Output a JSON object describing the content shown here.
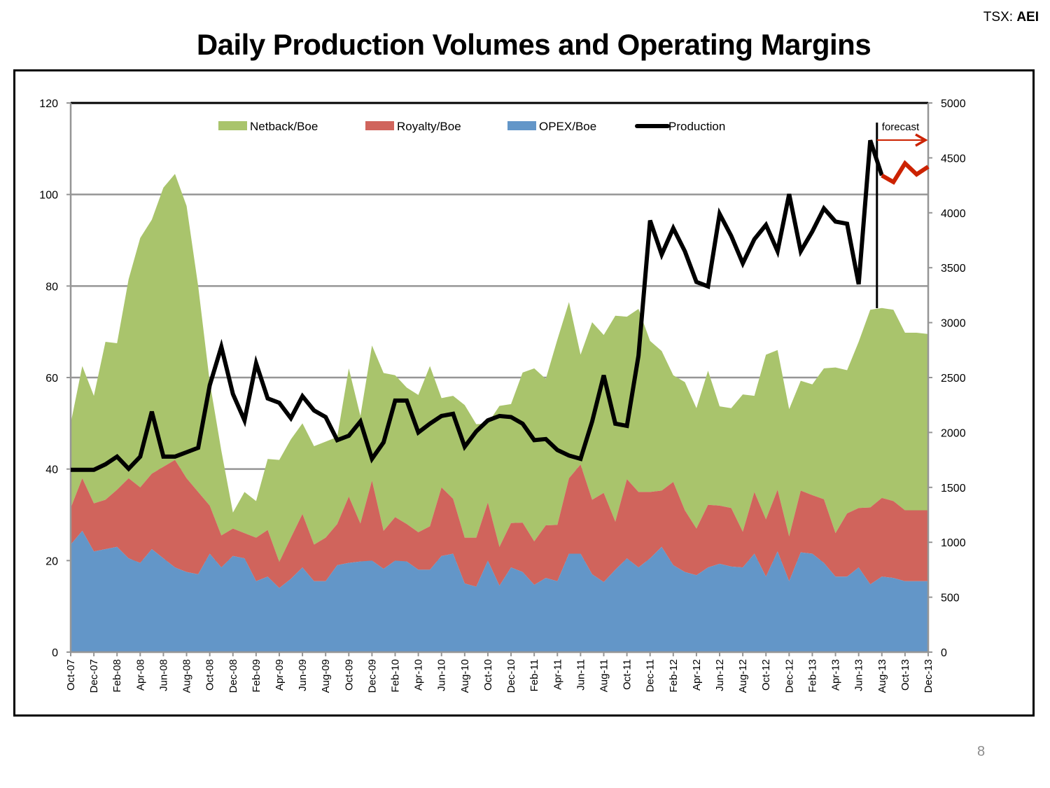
{
  "header": {
    "ticker_prefix": "TSX: ",
    "ticker_symbol": "AEI",
    "title": "Daily Production Volumes and Operating Margins"
  },
  "footer": {
    "page_number": "8"
  },
  "colors": {
    "netback": "#a9c46c",
    "royalty": "#d0645c",
    "opex": "#6396c8",
    "production": "#000000",
    "forecast": "#cc2200",
    "grid": "#969696"
  },
  "chart_data": {
    "type": "area",
    "title": "Daily Production Volumes and Operating Margins",
    "xlabel": "",
    "ylabel_left": "",
    "ylabel_right": "",
    "stacked": true,
    "ylim_left": [
      0,
      120
    ],
    "yticks_left": [
      0,
      20,
      40,
      60,
      80,
      100,
      120
    ],
    "ylim_right": [
      0,
      5000
    ],
    "yticks_right": [
      0,
      500,
      1000,
      1500,
      2000,
      2500,
      3000,
      3500,
      4000,
      4500,
      5000
    ],
    "grid": true,
    "legend_position": "top",
    "x": [
      "Oct-07",
      "Nov-07",
      "Dec-07",
      "Jan-08",
      "Feb-08",
      "Mar-08",
      "Apr-08",
      "May-08",
      "Jun-08",
      "Jul-08",
      "Aug-08",
      "Sep-08",
      "Oct-08",
      "Nov-08",
      "Dec-08",
      "Jan-09",
      "Feb-09",
      "Mar-09",
      "Apr-09",
      "May-09",
      "Jun-09",
      "Jul-09",
      "Aug-09",
      "Sep-09",
      "Oct-09",
      "Nov-09",
      "Dec-09",
      "Jan-10",
      "Feb-10",
      "Mar-10",
      "Apr-10",
      "May-10",
      "Jun-10",
      "Jul-10",
      "Aug-10",
      "Sep-10",
      "Oct-10",
      "Nov-10",
      "Dec-10",
      "Jan-11",
      "Feb-11",
      "Mar-11",
      "Apr-11",
      "May-11",
      "Jun-11",
      "Jul-11",
      "Aug-11",
      "Sep-11",
      "Oct-11",
      "Nov-11",
      "Dec-11",
      "Jan-12",
      "Feb-12",
      "Mar-12",
      "Apr-12",
      "May-12",
      "Jun-12",
      "Jul-12",
      "Aug-12",
      "Sep-12",
      "Oct-12",
      "Nov-12",
      "Dec-12",
      "Jan-13",
      "Feb-13",
      "Mar-13",
      "Apr-13",
      "May-13",
      "Jun-13",
      "Jul-13",
      "Aug-13",
      "Sep-13",
      "Oct-13",
      "Nov-13",
      "Dec-13"
    ],
    "x_tick_labels": [
      "Oct-07",
      "Dec-07",
      "Feb-08",
      "Apr-08",
      "Jun-08",
      "Aug-08",
      "Oct-08",
      "Dec-08",
      "Feb-09",
      "Apr-09",
      "Jun-09",
      "Aug-09",
      "Oct-09",
      "Dec-09",
      "Feb-10",
      "Apr-10",
      "Jun-10",
      "Aug-10",
      "Oct-10",
      "Dec-10",
      "Feb-11",
      "Apr-11",
      "Jun-11",
      "Aug-11",
      "Oct-11",
      "Dec-11",
      "Feb-12",
      "Apr-12",
      "Jun-12",
      "Aug-12",
      "Oct-12",
      "Dec-12",
      "Feb-13",
      "Apr-13",
      "Jun-13",
      "Aug-13",
      "Oct-13",
      "Dec-13"
    ],
    "series": [
      {
        "name": "OPEX/Boe",
        "axis": "left",
        "type": "area",
        "values": [
          23.5,
          26.5,
          22,
          22.5,
          23,
          20.5,
          19.5,
          22.5,
          20.5,
          18.5,
          17.5,
          17,
          21.5,
          18.5,
          21,
          20.5,
          15.5,
          16.5,
          14,
          16,
          18.5,
          15.5,
          15.5,
          19,
          19.5,
          19.8,
          20,
          18.2,
          20,
          19.8,
          18,
          18,
          21,
          21.5,
          15,
          14.3,
          20,
          14.5,
          18.5,
          17.5,
          14.7,
          16.2,
          15.5,
          21.5,
          21.5,
          17,
          15.3,
          18,
          20.5,
          18.5,
          20.5,
          23,
          19,
          17.5,
          16.8,
          18.5,
          19.3,
          18.7,
          18.5,
          21.5,
          16.5,
          22,
          15.5,
          21.8,
          21.5,
          19.5,
          16.5,
          16.5,
          18.5,
          14.8,
          16.5,
          16.2,
          15.5,
          15.5,
          15.5
        ]
      },
      {
        "name": "Royalty/Boe",
        "axis": "left",
        "type": "area",
        "values": [
          8,
          11.5,
          10.5,
          10.8,
          12.5,
          17.5,
          16.5,
          16.5,
          20,
          23.5,
          20.5,
          18,
          10.5,
          7,
          6,
          5.5,
          9.5,
          10.2,
          5.7,
          9,
          11.7,
          8,
          9.5,
          9,
          14.5,
          8.3,
          17.5,
          8.3,
          9.5,
          8.2,
          8.2,
          9.5,
          15,
          12,
          10,
          10.7,
          12.7,
          8.5,
          9.7,
          10.8,
          9.5,
          11.5,
          12.3,
          16.5,
          19.5,
          16.3,
          19.5,
          10.5,
          17.3,
          16.5,
          14.5,
          12.3,
          18.2,
          13.5,
          10.2,
          13.7,
          12.7,
          12.8,
          7.8,
          13.5,
          12.5,
          13.5,
          9.8,
          13.5,
          12.8,
          13.9,
          9.5,
          13.8,
          13,
          16.8,
          17.2,
          16.8,
          15.5,
          15.5,
          15.5
        ]
      },
      {
        "name": "Netback/Boe",
        "axis": "left",
        "type": "area",
        "values": [
          18.5,
          24.5,
          23.5,
          34.5,
          32,
          43.5,
          54.5,
          55.5,
          61,
          62.5,
          59.5,
          45,
          27,
          18.5,
          3.5,
          9,
          8,
          15.5,
          22.3,
          21.5,
          19.8,
          21.5,
          21,
          19,
          28,
          23.5,
          29.5,
          34.5,
          31,
          29.8,
          30,
          35,
          19.5,
          22.5,
          29,
          24.8,
          17.3,
          30.8,
          26,
          32.8,
          37.8,
          32,
          40.5,
          38.5,
          24,
          38.8,
          34.5,
          45,
          35.5,
          40,
          33,
          30.5,
          23.3,
          28,
          26.3,
          29.3,
          21.7,
          21.8,
          30,
          21,
          36,
          30.5,
          27.8,
          24,
          24.2,
          28.6,
          36.2,
          31.3,
          36.3,
          43.2,
          41.5,
          41.8,
          38.8,
          38.8,
          38.5
        ]
      },
      {
        "name": "Production",
        "axis": "right",
        "type": "line",
        "values": [
          1660,
          1660,
          1660,
          1710,
          1780,
          1670,
          1780,
          2190,
          1780,
          1780,
          1820,
          1860,
          2430,
          2780,
          2350,
          2110,
          2630,
          2310,
          2270,
          2130,
          2330,
          2200,
          2140,
          1930,
          1970,
          2100,
          1760,
          1910,
          2290,
          2290,
          2000,
          2080,
          2150,
          2170,
          1870,
          2010,
          2110,
          2150,
          2140,
          2080,
          1930,
          1940,
          1840,
          1790,
          1760,
          2100,
          2520,
          2080,
          2060,
          2700,
          3930,
          3620,
          3860,
          3650,
          3370,
          3330,
          3990,
          3790,
          3540,
          3760,
          3890,
          3650,
          4170,
          3650,
          3830,
          4040,
          3920,
          3900,
          3350,
          4660,
          4340,
          4280,
          4450,
          4350,
          4420
        ],
        "forecast_start_index": 70
      }
    ],
    "annotations": [
      {
        "text": "forecast",
        "x": "Aug-13",
        "note": "vertical marker line with red arrow pointing right"
      }
    ]
  }
}
